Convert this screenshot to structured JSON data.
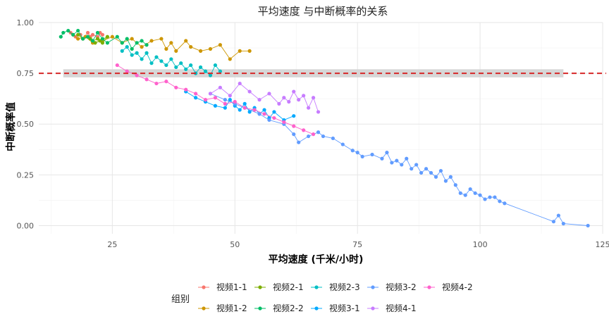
{
  "chart_data": {
    "type": "line",
    "title": "平均速度 与中断概率的关系",
    "xlabel": "平均速度 (千米/小时)",
    "ylabel": "中断概率值",
    "xlim": [
      10,
      125
    ],
    "ylim": [
      -0.04,
      1.0
    ],
    "x_ticks": [
      25,
      50,
      75,
      100,
      125
    ],
    "y_ticks": [
      0.0,
      0.25,
      0.5,
      0.75,
      1.0
    ],
    "x_tick_labels": [
      "25",
      "50",
      "75",
      "100",
      "125"
    ],
    "y_tick_labels": [
      "0.00",
      "0.25",
      "0.50",
      "0.75",
      "1.00"
    ],
    "grid": true,
    "reference_line": {
      "y": 0.75,
      "color": "#d62728",
      "style": "dashed"
    },
    "reference_band": {
      "x": [
        15.0,
        117.0
      ],
      "y": [
        0.73,
        0.77
      ],
      "color": "#d3d3d3"
    },
    "legend": {
      "title": "组别",
      "position": "bottom",
      "entries": [
        "视频1-1",
        "视频2-1",
        "视频2-3",
        "视频3-2",
        "视频4-2",
        "视频1-2",
        "视频2-2",
        "视频3-1",
        "视频4-1"
      ]
    },
    "series": [
      {
        "name": "视频1-1",
        "color": "#F8766D",
        "x": [
          16.5,
          17.5,
          18.5,
          19,
          20,
          20.5,
          21,
          22,
          22.5,
          23
        ],
        "y": [
          0.95,
          0.93,
          0.94,
          0.92,
          0.95,
          0.93,
          0.94,
          0.93,
          0.95,
          0.94
        ]
      },
      {
        "name": "视频1-2",
        "color": "#CD9600",
        "x": [
          17,
          18,
          19.5,
          21,
          23,
          25,
          27,
          29,
          31,
          33,
          35,
          36,
          37,
          38,
          40,
          41,
          43,
          45,
          47,
          49,
          51,
          53
        ],
        "y": [
          0.94,
          0.92,
          0.93,
          0.9,
          0.91,
          0.93,
          0.9,
          0.92,
          0.88,
          0.91,
          0.92,
          0.87,
          0.9,
          0.86,
          0.91,
          0.88,
          0.86,
          0.87,
          0.89,
          0.82,
          0.86,
          0.86
        ]
      },
      {
        "name": "视频2-1",
        "color": "#7CAE00",
        "x": [
          18,
          19,
          20,
          21,
          22,
          23,
          24,
          22.5,
          21.5,
          20.5
        ],
        "y": [
          0.94,
          0.92,
          0.93,
          0.91,
          0.92,
          0.9,
          0.93,
          0.91,
          0.9,
          0.92
        ]
      },
      {
        "name": "视频2-2",
        "color": "#00BE67",
        "x": [
          14.5,
          15,
          16,
          17,
          18,
          19,
          20,
          21,
          22,
          23,
          24,
          26,
          27,
          28,
          29,
          30,
          31,
          32
        ],
        "y": [
          0.93,
          0.95,
          0.96,
          0.94,
          0.96,
          0.92,
          0.93,
          0.91,
          0.95,
          0.92,
          0.9,
          0.93,
          0.9,
          0.92,
          0.87,
          0.9,
          0.91,
          0.89
        ]
      },
      {
        "name": "视频2-3",
        "color": "#00BFC4",
        "x": [
          27,
          28,
          29,
          30,
          31,
          32,
          33,
          34,
          35,
          36,
          37,
          38,
          39,
          40,
          41,
          42,
          43,
          44,
          45,
          46,
          47
        ],
        "y": [
          0.86,
          0.88,
          0.84,
          0.85,
          0.82,
          0.85,
          0.8,
          0.83,
          0.81,
          0.79,
          0.82,
          0.78,
          0.8,
          0.77,
          0.79,
          0.75,
          0.78,
          0.76,
          0.74,
          0.79,
          0.76
        ]
      },
      {
        "name": "视频3-1",
        "color": "#00A9FF",
        "x": [
          40,
          42,
          44,
          46,
          48,
          49,
          50,
          51,
          52,
          53,
          54,
          55,
          56,
          57,
          58,
          60,
          62
        ],
        "y": [
          0.66,
          0.63,
          0.61,
          0.59,
          0.58,
          0.62,
          0.59,
          0.57,
          0.6,
          0.56,
          0.58,
          0.55,
          0.57,
          0.53,
          0.56,
          0.52,
          0.54
        ]
      },
      {
        "name": "视频3-2",
        "color": "#619CFF",
        "x": [
          45,
          48,
          50,
          52,
          55,
          57,
          60,
          62,
          63,
          65,
          67,
          68,
          70,
          72,
          74,
          75,
          76,
          78,
          80,
          81,
          82,
          83,
          84,
          85,
          86,
          87,
          88,
          89,
          90,
          91,
          92,
          93,
          94,
          95,
          96,
          97,
          98,
          99,
          100,
          101,
          102,
          103,
          104,
          105,
          115,
          116,
          117,
          122
        ],
        "y": [
          0.65,
          0.62,
          0.6,
          0.58,
          0.55,
          0.52,
          0.5,
          0.45,
          0.41,
          0.44,
          0.46,
          0.44,
          0.43,
          0.4,
          0.37,
          0.36,
          0.34,
          0.35,
          0.33,
          0.36,
          0.31,
          0.32,
          0.3,
          0.33,
          0.28,
          0.3,
          0.26,
          0.28,
          0.26,
          0.24,
          0.27,
          0.22,
          0.24,
          0.2,
          0.16,
          0.15,
          0.18,
          0.16,
          0.15,
          0.13,
          0.14,
          0.14,
          0.12,
          0.11,
          0.02,
          0.05,
          0.01,
          0.0
        ]
      },
      {
        "name": "视频4-1",
        "color": "#C77CFF",
        "x": [
          45,
          47,
          49,
          51,
          53,
          55,
          57,
          59,
          60,
          61,
          62,
          63,
          64,
          65,
          66,
          67
        ],
        "y": [
          0.65,
          0.68,
          0.64,
          0.7,
          0.66,
          0.62,
          0.65,
          0.6,
          0.63,
          0.61,
          0.66,
          0.62,
          0.64,
          0.58,
          0.63,
          0.56
        ]
      },
      {
        "name": "视频4-2",
        "color": "#FF61CC",
        "x": [
          26,
          28,
          30,
          32,
          34,
          36,
          38,
          40,
          42,
          44,
          46,
          48,
          50,
          52,
          54,
          56,
          58,
          60,
          62,
          64,
          66
        ],
        "y": [
          0.79,
          0.76,
          0.74,
          0.72,
          0.7,
          0.71,
          0.68,
          0.67,
          0.65,
          0.62,
          0.63,
          0.6,
          0.61,
          0.58,
          0.57,
          0.55,
          0.53,
          0.51,
          0.49,
          0.47,
          0.45
        ]
      }
    ]
  }
}
